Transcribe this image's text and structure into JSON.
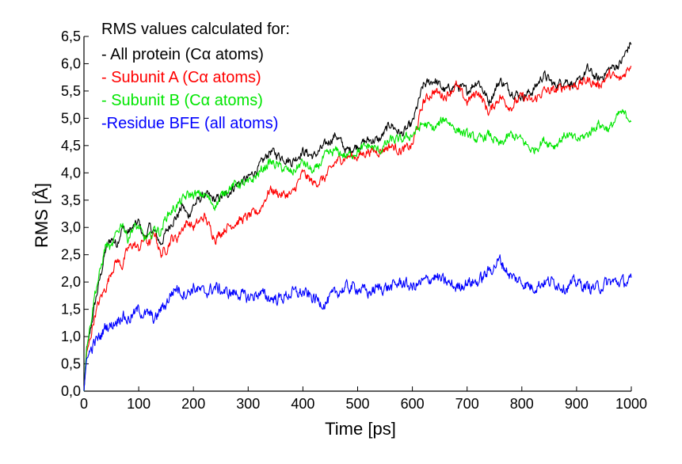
{
  "chart_data": {
    "type": "line",
    "title": "",
    "xlabel": "Time [ps]",
    "ylabel": "RMS [Å]",
    "xlim": [
      0,
      1000
    ],
    "ylim": [
      0,
      6.5
    ],
    "x_ticks": [
      "0",
      "100",
      "200",
      "300",
      "400",
      "500",
      "600",
      "700",
      "800",
      "900",
      "1000"
    ],
    "y_ticks": [
      "0,0",
      "0,5",
      "1,0",
      "1,5",
      "2,0",
      "2,5",
      "3,0",
      "3,5",
      "4,0",
      "4,5",
      "5,0",
      "5,5",
      "6,0",
      "6,5"
    ],
    "grid": false,
    "legend_position": "top-left",
    "legend_title": "RMS values calculated for:",
    "series": [
      {
        "name": "- All protein (Cα atoms)",
        "color": "#000000",
        "x": [
          0,
          5,
          10,
          20,
          30,
          40,
          50,
          60,
          70,
          80,
          90,
          100,
          110,
          120,
          130,
          140,
          150,
          160,
          170,
          180,
          190,
          200,
          220,
          240,
          260,
          280,
          300,
          320,
          340,
          360,
          380,
          400,
          420,
          440,
          460,
          480,
          500,
          520,
          540,
          560,
          580,
          600,
          620,
          640,
          660,
          680,
          700,
          720,
          740,
          760,
          780,
          800,
          820,
          840,
          860,
          880,
          900,
          920,
          940,
          960,
          980,
          1000
        ],
        "values": [
          0.0,
          0.8,
          1.0,
          1.6,
          2.1,
          2.6,
          2.8,
          2.7,
          3.0,
          2.9,
          3.0,
          3.1,
          2.8,
          3.0,
          2.9,
          2.7,
          2.9,
          3.1,
          3.2,
          3.4,
          3.2,
          3.4,
          3.6,
          3.5,
          3.6,
          3.8,
          3.9,
          4.1,
          4.4,
          4.3,
          4.2,
          4.4,
          4.3,
          4.5,
          4.7,
          4.4,
          4.5,
          4.6,
          4.6,
          4.9,
          4.7,
          4.9,
          5.6,
          5.7,
          5.5,
          5.6,
          5.5,
          5.7,
          5.3,
          5.7,
          5.5,
          5.4,
          5.5,
          5.8,
          5.6,
          5.7,
          5.6,
          5.9,
          5.7,
          5.9,
          6.0,
          6.4
        ]
      },
      {
        "name": "- Subunit A (Cα atoms)",
        "color": "#ff0000",
        "x": [
          0,
          5,
          10,
          20,
          30,
          40,
          50,
          60,
          70,
          80,
          90,
          100,
          110,
          120,
          130,
          140,
          150,
          160,
          170,
          180,
          190,
          200,
          220,
          240,
          260,
          280,
          300,
          320,
          340,
          360,
          380,
          400,
          420,
          440,
          460,
          480,
          500,
          520,
          540,
          560,
          580,
          600,
          620,
          640,
          660,
          680,
          700,
          720,
          740,
          760,
          780,
          800,
          820,
          840,
          860,
          880,
          900,
          920,
          940,
          960,
          980,
          1000
        ],
        "values": [
          0.0,
          0.7,
          0.9,
          1.4,
          1.7,
          1.9,
          2.2,
          2.4,
          2.3,
          2.6,
          2.7,
          2.6,
          2.8,
          2.7,
          2.9,
          2.5,
          2.6,
          2.8,
          2.8,
          3.0,
          3.1,
          3.0,
          3.2,
          2.8,
          3.0,
          3.1,
          3.2,
          3.3,
          3.7,
          3.6,
          3.6,
          4.0,
          3.8,
          3.9,
          4.2,
          4.3,
          4.3,
          4.4,
          4.4,
          4.5,
          4.4,
          4.5,
          5.3,
          5.5,
          5.4,
          5.6,
          5.3,
          5.5,
          5.1,
          5.4,
          5.2,
          5.4,
          5.3,
          5.5,
          5.5,
          5.6,
          5.6,
          5.7,
          5.6,
          5.8,
          5.7,
          6.0
        ]
      },
      {
        "name": "- Subunit B (Cα atoms)",
        "color": "#00e600",
        "x": [
          0,
          5,
          10,
          20,
          30,
          40,
          50,
          60,
          70,
          80,
          90,
          100,
          110,
          120,
          130,
          140,
          150,
          160,
          170,
          180,
          190,
          200,
          220,
          240,
          260,
          280,
          300,
          320,
          340,
          360,
          380,
          400,
          420,
          440,
          460,
          480,
          500,
          520,
          540,
          560,
          580,
          600,
          620,
          640,
          660,
          680,
          700,
          720,
          740,
          760,
          780,
          800,
          820,
          840,
          860,
          880,
          900,
          920,
          940,
          960,
          980,
          1000
        ],
        "values": [
          0.0,
          0.8,
          1.1,
          1.8,
          2.2,
          2.7,
          2.6,
          2.9,
          3.1,
          2.8,
          3.0,
          3.0,
          2.8,
          2.8,
          3.0,
          2.9,
          3.2,
          3.3,
          3.4,
          3.5,
          3.6,
          3.6,
          3.6,
          3.4,
          3.7,
          3.8,
          3.8,
          4.0,
          4.2,
          4.1,
          4.0,
          4.2,
          4.0,
          4.3,
          4.4,
          4.3,
          4.4,
          4.5,
          4.4,
          4.6,
          4.6,
          4.7,
          4.9,
          4.8,
          5.0,
          4.8,
          4.7,
          4.6,
          4.7,
          4.5,
          4.7,
          4.6,
          4.4,
          4.6,
          4.5,
          4.7,
          4.6,
          4.7,
          4.9,
          4.8,
          5.1,
          5.0
        ]
      },
      {
        "name": "-Residue BFE (all atoms)",
        "color": "#0000ff",
        "x": [
          0,
          5,
          10,
          20,
          30,
          40,
          50,
          60,
          70,
          80,
          90,
          100,
          110,
          120,
          130,
          140,
          150,
          160,
          170,
          180,
          190,
          200,
          220,
          240,
          260,
          280,
          300,
          320,
          340,
          360,
          380,
          400,
          420,
          440,
          460,
          480,
          500,
          520,
          540,
          560,
          580,
          600,
          620,
          640,
          660,
          680,
          700,
          720,
          740,
          760,
          780,
          800,
          820,
          840,
          860,
          880,
          900,
          920,
          940,
          960,
          980,
          1000
        ],
        "values": [
          0.0,
          0.6,
          0.7,
          0.9,
          1.0,
          1.2,
          1.2,
          1.3,
          1.4,
          1.3,
          1.4,
          1.5,
          1.4,
          1.4,
          1.3,
          1.5,
          1.6,
          1.8,
          1.9,
          1.8,
          1.8,
          1.9,
          1.8,
          1.9,
          1.8,
          1.8,
          1.7,
          1.8,
          1.7,
          1.7,
          1.8,
          1.8,
          1.7,
          1.6,
          1.8,
          1.9,
          1.9,
          1.8,
          1.9,
          1.9,
          2.0,
          1.9,
          2.0,
          2.1,
          2.0,
          1.9,
          2.0,
          2.0,
          2.2,
          2.4,
          2.1,
          2.0,
          1.9,
          2.0,
          2.0,
          1.9,
          2.0,
          1.9,
          1.9,
          2.0,
          2.0,
          2.0
        ]
      }
    ]
  }
}
